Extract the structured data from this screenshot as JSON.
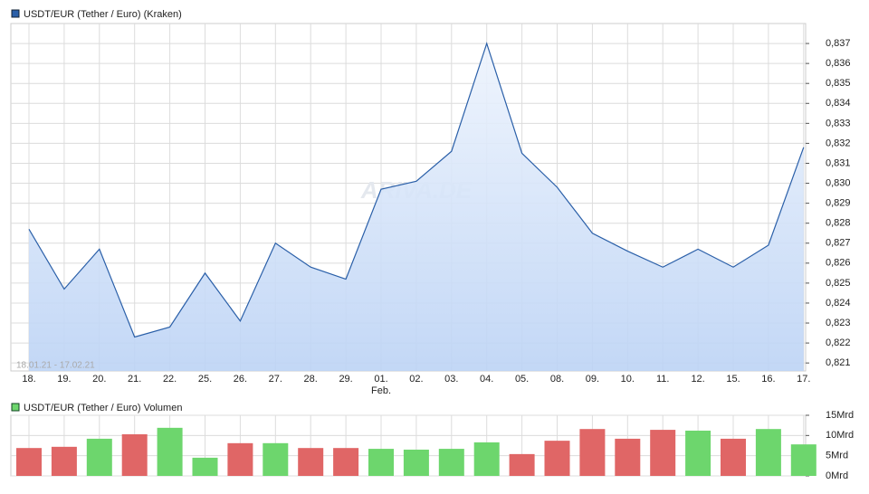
{
  "chart_data": [
    {
      "type": "area",
      "categories": [
        "18.",
        "19.",
        "20.",
        "21.",
        "22.",
        "25.",
        "26.",
        "27.",
        "28.",
        "29.",
        "01.",
        "02.",
        "03.",
        "04.",
        "05.",
        "08.",
        "09.",
        "10.",
        "11.",
        "12.",
        "15.",
        "16.",
        "17."
      ],
      "x_annotation": "Feb.",
      "date_range": "18.01.21 - 17.02.21",
      "watermark": "ARIVA.DE",
      "series": [
        {
          "name": "USDT/EUR (Tether / Euro) (Kraken)",
          "color": "#2a5fa8",
          "values": [
            0.8277,
            0.8247,
            0.8267,
            0.8223,
            0.8228,
            0.8255,
            0.8231,
            0.827,
            0.8258,
            0.8252,
            0.8297,
            0.8301,
            0.8316,
            0.837,
            0.8315,
            0.8298,
            0.8275,
            0.8266,
            0.8258,
            0.8267,
            0.8258,
            0.8269,
            0.8318
          ]
        }
      ],
      "ylim": [
        0.8206,
        0.838
      ],
      "yticks": [
        {
          "value": 0.821,
          "label": "0,821"
        },
        {
          "value": 0.822,
          "label": "0,822"
        },
        {
          "value": 0.823,
          "label": "0,823"
        },
        {
          "value": 0.824,
          "label": "0,824"
        },
        {
          "value": 0.825,
          "label": "0,825"
        },
        {
          "value": 0.826,
          "label": "0,826"
        },
        {
          "value": 0.827,
          "label": "0,827"
        },
        {
          "value": 0.828,
          "label": "0,828"
        },
        {
          "value": 0.829,
          "label": "0,829"
        },
        {
          "value": 0.83,
          "label": "0,830"
        },
        {
          "value": 0.831,
          "label": "0,831"
        },
        {
          "value": 0.832,
          "label": "0,832"
        },
        {
          "value": 0.833,
          "label": "0,833"
        },
        {
          "value": 0.834,
          "label": "0,834"
        },
        {
          "value": 0.835,
          "label": "0,835"
        },
        {
          "value": 0.836,
          "label": "0,836"
        },
        {
          "value": 0.837,
          "label": "0,837"
        }
      ],
      "grid": true
    },
    {
      "type": "bar",
      "series": [
        {
          "name": "USDT/EUR (Tether / Euro) Volumen",
          "color": "#6dd66d",
          "values": [
            6.9,
            7.2,
            9.2,
            10.3,
            11.9,
            4.5,
            8.1,
            8.1,
            6.9,
            6.9,
            6.7,
            6.5,
            6.7,
            8.3,
            5.4,
            8.7,
            11.6,
            9.2,
            11.4,
            11.2,
            9.2,
            11.6,
            7.8
          ],
          "colors": [
            "#e06666",
            "#e06666",
            "#6dd66d",
            "#e06666",
            "#6dd66d",
            "#6dd66d",
            "#e06666",
            "#6dd66d",
            "#e06666",
            "#e06666",
            "#6dd66d",
            "#6dd66d",
            "#6dd66d",
            "#6dd66d",
            "#e06666",
            "#e06666",
            "#e06666",
            "#e06666",
            "#e06666",
            "#6dd66d",
            "#e06666",
            "#6dd66d",
            "#6dd66d"
          ]
        }
      ],
      "ylim": [
        0,
        15
      ],
      "yticks": [
        {
          "value": 0,
          "label": "0Mrd"
        },
        {
          "value": 5,
          "label": "5Mrd"
        },
        {
          "value": 10,
          "label": "10Mrd"
        },
        {
          "value": 15,
          "label": "15Mrd"
        }
      ],
      "grid": true
    }
  ]
}
